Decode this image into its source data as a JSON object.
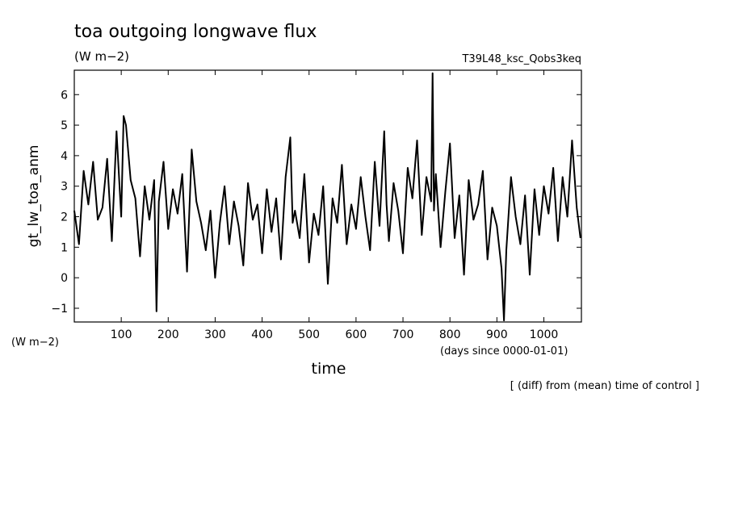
{
  "chart_data": {
    "type": "line",
    "title": "toa outgoing longwave flux",
    "units": "(W m−2)",
    "run_label": "T39L48_ksc_Qobs3keq",
    "xlabel": "time",
    "x_units": "(days since 0000-01-01)",
    "ylabel": "gt_lw_toa_anm",
    "y_units": "(W m−2)",
    "note": "[ (diff) from (mean) time of control ]",
    "xlim": [
      0,
      1080
    ],
    "ylim": [
      -1.45,
      6.8
    ],
    "x_ticks": [
      100,
      200,
      300,
      400,
      500,
      600,
      700,
      800,
      900,
      1000
    ],
    "x_tick_labels": [
      "100",
      "200",
      "300",
      "400",
      "500",
      "600",
      "700",
      "800",
      "900",
      "1000"
    ],
    "y_ticks": [
      -1,
      0,
      1,
      2,
      3,
      4,
      5,
      6
    ],
    "y_tick_labels": [
      "−1",
      "0",
      "1",
      "2",
      "3",
      "4",
      "5",
      "6"
    ],
    "grid": false,
    "line_color": "#000000",
    "series": [
      {
        "x": [
          0,
          10,
          20,
          30,
          40,
          50,
          60,
          70,
          80,
          90,
          100,
          105,
          110,
          120,
          130,
          140,
          150,
          160,
          170,
          175,
          180,
          190,
          200,
          210,
          220,
          230,
          240,
          250,
          260,
          270,
          280,
          290,
          300,
          310,
          320,
          330,
          340,
          350,
          360,
          370,
          380,
          390,
          400,
          410,
          420,
          430,
          440,
          450,
          460,
          465,
          470,
          480,
          490,
          500,
          510,
          520,
          530,
          540,
          550,
          560,
          570,
          580,
          590,
          600,
          610,
          620,
          630,
          640,
          650,
          660,
          665,
          670,
          680,
          690,
          700,
          710,
          720,
          730,
          740,
          750,
          760,
          763,
          766,
          770,
          780,
          790,
          800,
          810,
          820,
          830,
          840,
          850,
          860,
          870,
          880,
          890,
          900,
          910,
          915,
          920,
          930,
          940,
          950,
          960,
          970,
          980,
          990,
          1000,
          1010,
          1020,
          1030,
          1040,
          1050,
          1060,
          1070,
          1078
        ],
        "y": [
          2.2,
          1.1,
          3.5,
          2.4,
          3.8,
          1.9,
          2.3,
          3.9,
          1.2,
          4.8,
          2.0,
          5.3,
          5.0,
          3.2,
          2.6,
          0.7,
          3.0,
          1.9,
          3.2,
          -1.1,
          2.5,
          3.8,
          1.6,
          2.9,
          2.1,
          3.4,
          0.2,
          4.2,
          2.5,
          1.8,
          0.9,
          2.2,
          0.0,
          1.8,
          3.0,
          1.1,
          2.5,
          1.7,
          0.4,
          3.1,
          1.9,
          2.4,
          0.8,
          2.9,
          1.5,
          2.6,
          0.6,
          3.3,
          4.6,
          1.8,
          2.2,
          1.3,
          3.4,
          0.5,
          2.1,
          1.4,
          3.0,
          -0.2,
          2.6,
          1.8,
          3.7,
          1.1,
          2.4,
          1.6,
          3.3,
          2.0,
          0.9,
          3.8,
          1.7,
          4.8,
          2.4,
          1.2,
          3.1,
          2.2,
          0.8,
          3.6,
          2.6,
          4.5,
          1.4,
          3.3,
          2.5,
          6.7,
          2.2,
          3.4,
          1.0,
          2.8,
          4.4,
          1.3,
          2.7,
          0.1,
          3.2,
          1.9,
          2.4,
          3.5,
          0.6,
          2.3,
          1.7,
          0.3,
          -1.4,
          0.9,
          3.3,
          2.0,
          1.1,
          2.7,
          0.1,
          2.9,
          1.4,
          3.0,
          2.1,
          3.6,
          1.2,
          3.3,
          2.0,
          4.5,
          2.3,
          1.3
        ]
      }
    ]
  }
}
